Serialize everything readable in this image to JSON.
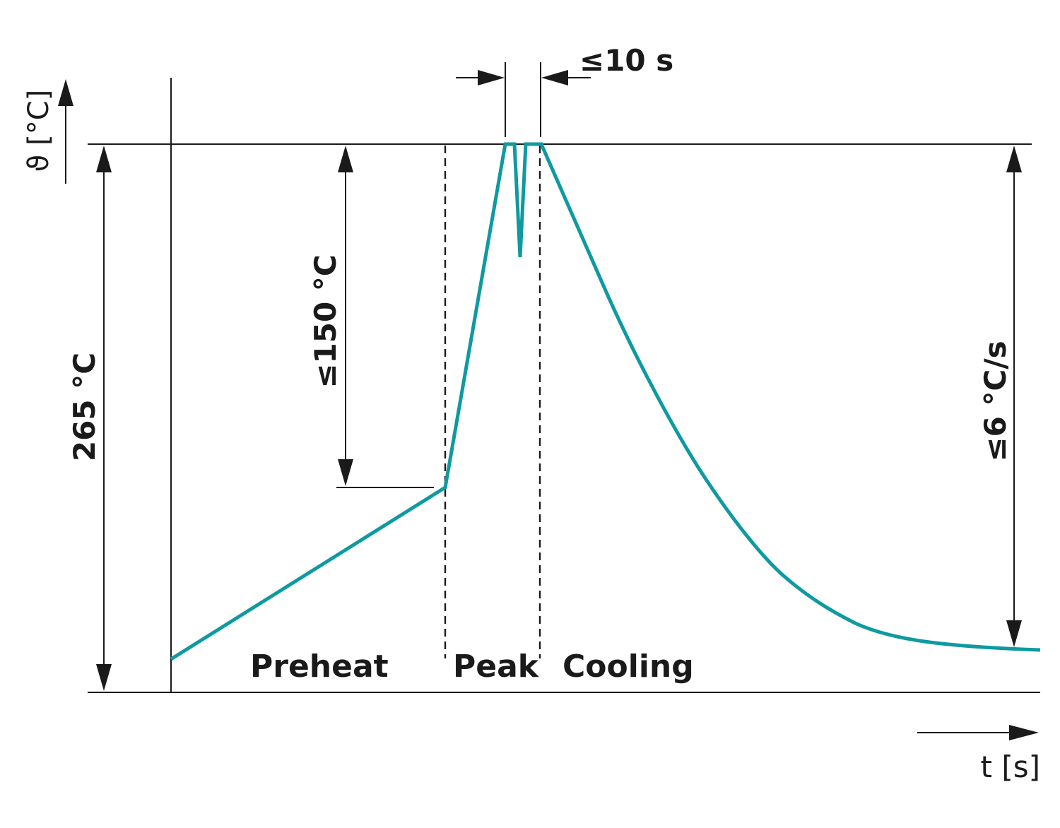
{
  "diagram": {
    "axes": {
      "y_label": "ϑ [°C]",
      "x_label": "t [s]"
    },
    "dimensions": {
      "peak_temperature": "265 °C",
      "max_rise": "≤150 °C",
      "peak_duration": "≤10 s",
      "cooling_rate": "≤6 °C/s"
    },
    "phases": {
      "preheat": "Preheat",
      "peak": "Peak",
      "cooling": "Cooling"
    },
    "colors": {
      "curve": "#0e9aa0",
      "lines": "#1a1a1a",
      "background": "#ffffff"
    }
  }
}
